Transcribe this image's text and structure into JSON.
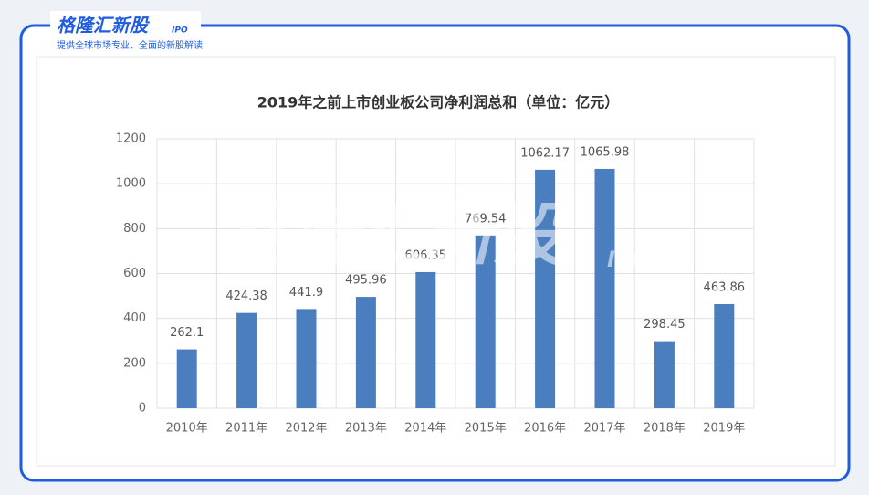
{
  "brand": {
    "name": "格隆汇新股",
    "tag": "IPO",
    "slogan": "提供全球市场专业、全面的新股解读"
  },
  "watermark": {
    "name": "格隆汇新股",
    "tag": "IPO"
  },
  "chart_data": {
    "type": "bar",
    "title": "2019年之前上市创业板公司净利润总和（单位：亿元）",
    "categories": [
      "2010年",
      "2011年",
      "2012年",
      "2013年",
      "2014年",
      "2015年",
      "2016年",
      "2017年",
      "2018年",
      "2019年"
    ],
    "values": [
      262.1,
      424.38,
      441.9,
      495.96,
      606.35,
      769.54,
      1062.17,
      1065.98,
      298.45,
      463.86
    ],
    "color": "#4a7ebf",
    "ylim": [
      0,
      1200
    ],
    "yticks": [
      0,
      200,
      400,
      600,
      800,
      1000,
      1200
    ],
    "grid": true
  }
}
